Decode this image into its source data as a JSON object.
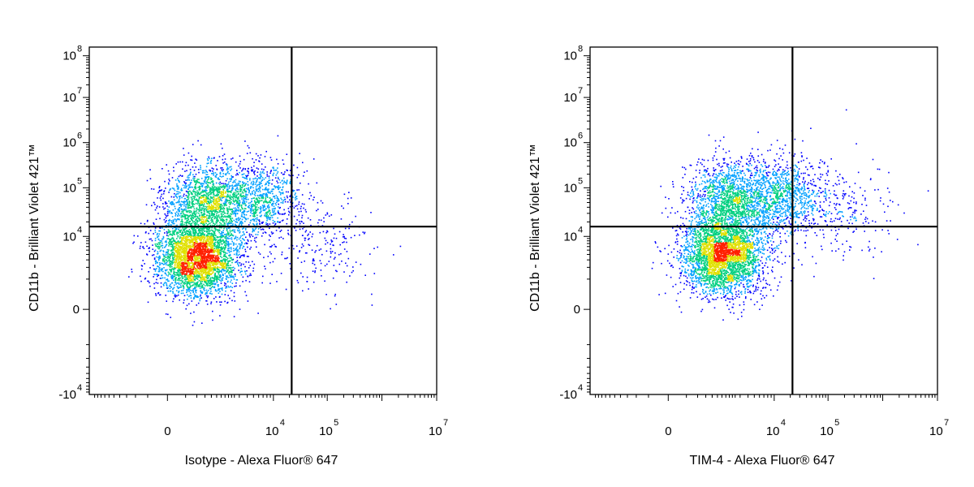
{
  "chart_data": [
    {
      "type": "scatter",
      "title": "",
      "xlabel": "Isotype - Alexa Fluor® 647",
      "ylabel": "CD11b - Brilliant Violet 421™",
      "x_scale": "biexponential",
      "y_scale": "biexponential",
      "xlim": [
        -3000,
        10000000
      ],
      "ylim": [
        -10000,
        100000000
      ],
      "x_ticks": [
        {
          "base": "0",
          "exp": "",
          "value": 0
        },
        {
          "base": "10",
          "exp": "4",
          "value": 10000
        },
        {
          "base": "10",
          "exp": "5",
          "value": 100000
        },
        {
          "base": "10",
          "exp": "7",
          "value": 10000000
        }
      ],
      "y_ticks": [
        {
          "base": "-10",
          "exp": "4",
          "value": -10000
        },
        {
          "base": "0",
          "exp": "",
          "value": 0
        },
        {
          "base": "10",
          "exp": "4",
          "value": 10000
        },
        {
          "base": "10",
          "exp": "5",
          "value": 100000
        },
        {
          "base": "10",
          "exp": "6",
          "value": 1000000
        },
        {
          "base": "10",
          "exp": "7",
          "value": 10000000
        },
        {
          "base": "10",
          "exp": "8",
          "value": 100000000
        }
      ],
      "quadrant_gate": {
        "x": 22000,
        "y": 16000
      },
      "populations": [
        {
          "name": "",
          "x_center": 800,
          "y_center": 50000,
          "count": 1600
        },
        {
          "name": "",
          "x_center": 500,
          "y_center": 3500,
          "count": 3400
        },
        {
          "name": "",
          "x_center": 6000,
          "y_center": 60000,
          "count": 900
        },
        {
          "name": "",
          "x_center": 60000,
          "y_center": 8000,
          "count": 250
        }
      ],
      "color_scale": [
        "#0000ff",
        "#00a0ff",
        "#00d080",
        "#e0e000",
        "#ff2000"
      ],
      "seed": 11
    },
    {
      "type": "scatter",
      "title": "",
      "xlabel": "TIM-4 - Alexa Fluor® 647",
      "ylabel": "CD11b - Brilliant Violet 421™",
      "x_scale": "biexponential",
      "y_scale": "biexponential",
      "xlim": [
        -3000,
        10000000
      ],
      "ylim": [
        -10000,
        100000000
      ],
      "x_ticks": [
        {
          "base": "0",
          "exp": "",
          "value": 0
        },
        {
          "base": "10",
          "exp": "4",
          "value": 10000
        },
        {
          "base": "10",
          "exp": "5",
          "value": 100000
        },
        {
          "base": "10",
          "exp": "7",
          "value": 10000000
        }
      ],
      "y_ticks": [
        {
          "base": "-10",
          "exp": "4",
          "value": -10000
        },
        {
          "base": "0",
          "exp": "",
          "value": 0
        },
        {
          "base": "10",
          "exp": "4",
          "value": 10000
        },
        {
          "base": "10",
          "exp": "5",
          "value": 100000
        },
        {
          "base": "10",
          "exp": "6",
          "value": 1000000
        },
        {
          "base": "10",
          "exp": "7",
          "value": 10000000
        },
        {
          "base": "10",
          "exp": "8",
          "value": 100000000
        }
      ],
      "quadrant_gate": {
        "x": 22000,
        "y": 16000
      },
      "populations": [
        {
          "name": "",
          "x_center": 2000,
          "y_center": 60000,
          "count": 1500
        },
        {
          "name": "",
          "x_center": 1500,
          "y_center": 4000,
          "count": 3400
        },
        {
          "name": "",
          "x_center": 12000,
          "y_center": 65000,
          "count": 900
        },
        {
          "name": "",
          "x_center": 80000,
          "y_center": 40000,
          "count": 400
        }
      ],
      "color_scale": [
        "#0000ff",
        "#00a0ff",
        "#00d080",
        "#e0e000",
        "#ff2000"
      ],
      "seed": 29
    }
  ]
}
